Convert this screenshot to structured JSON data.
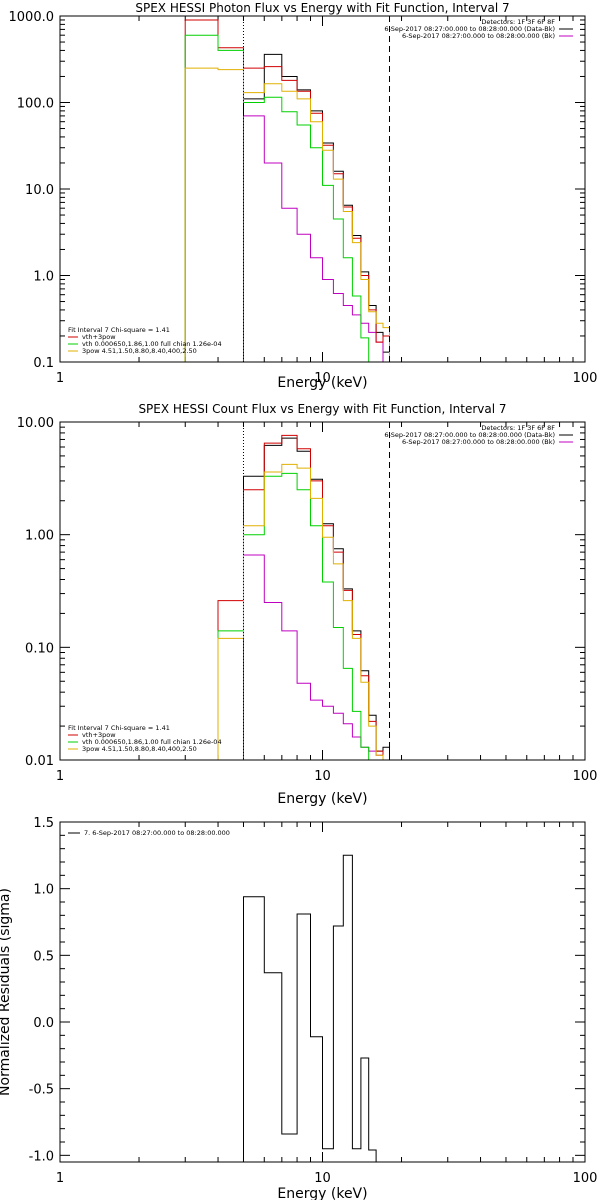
{
  "chart_data": [
    {
      "type": "line",
      "step": true,
      "scale": "log-log",
      "title": "SPEX HESSI Photon Flux vs Energy with Fit Function, Interval 7",
      "xlabel": "Energy (keV)",
      "ylabel": "",
      "xlim": [
        1,
        100
      ],
      "ylim": [
        0.1,
        1000
      ],
      "x_ticks": [
        "1",
        "10",
        "100"
      ],
      "y_ticks": [
        "0.1",
        "1.0",
        "10.0",
        "100.0",
        "1000.0"
      ],
      "vlines": [
        {
          "x": 5.0,
          "style": "dotted",
          "color": "#000000"
        },
        {
          "x": 18.0,
          "style": "dashed",
          "color": "#000000"
        }
      ],
      "info": [
        "Detectors: 1F 3F 6F 8F",
        "6-Sep-2017 08:27:00.000 to 08:28:00.000 (Data-Bk)",
        "6-Sep-2017 08:27:00.000 to 08:28:00.000 (Bk)"
      ],
      "info_colors": [
        "#000000",
        "#000000",
        "#c000c0"
      ],
      "fit_legend": [
        {
          "label": "Fit Interval 7   Chi-square = 1.41",
          "color": "#000000",
          "line": false
        },
        {
          "label": "vth+3pow",
          "color": "#d00000",
          "line": true
        },
        {
          "label": "vth 0.000650,1.86,1.00   full chian 1.26e-04",
          "color": "#00d000",
          "line": true
        },
        {
          "label": "3pow 4.51,1.50,8.80,8.40,400,2.50",
          "color": "#e0b000",
          "line": true
        }
      ],
      "energy_edges": [
        3,
        4,
        5,
        6,
        7,
        8,
        9,
        10,
        11,
        12,
        13,
        14,
        15,
        16,
        17,
        18,
        20
      ],
      "series": [
        {
          "name": "Data-Bk",
          "color": "#000000",
          "values": [
            null,
            null,
            110,
            360,
            200,
            140,
            80,
            34,
            16,
            6.5,
            2.9,
            1.1,
            0.45,
            0.22,
            0.13,
            null
          ]
        },
        {
          "name": "Bk",
          "color": "#c000c0",
          "values": [
            null,
            null,
            70,
            20,
            6.0,
            3.0,
            1.6,
            0.9,
            0.62,
            0.45,
            0.35,
            0.28,
            0.22,
            0.17,
            null,
            null
          ]
        },
        {
          "name": "vth+3pow",
          "color": "#d00000",
          "values": [
            900,
            430,
            250,
            260,
            180,
            135,
            75,
            32,
            15,
            6.2,
            2.7,
            1.0,
            0.4,
            0.17,
            0.2,
            null
          ]
        },
        {
          "name": "vth",
          "color": "#00d000",
          "values": [
            600,
            400,
            100,
            115,
            78,
            55,
            30,
            11,
            4.5,
            1.6,
            0.58,
            0.19,
            0.1,
            null,
            null,
            null
          ]
        },
        {
          "name": "3pow",
          "color": "#e0b000",
          "values": [
            250,
            240,
            130,
            165,
            135,
            110,
            60,
            28,
            13,
            5.5,
            2.4,
            0.9,
            0.38,
            0.28,
            0.25,
            null
          ]
        }
      ]
    },
    {
      "type": "line",
      "step": true,
      "scale": "log-log",
      "title": "SPEX HESSI Count Flux vs Energy with Fit Function, Interval 7",
      "xlabel": "Energy (keV)",
      "ylabel": "",
      "xlim": [
        1,
        100
      ],
      "ylim": [
        0.01,
        10
      ],
      "x_ticks": [
        "1",
        "10",
        "100"
      ],
      "y_ticks": [
        "0.01",
        "0.10",
        "1.00",
        "10.00"
      ],
      "vlines": [
        {
          "x": 5.0,
          "style": "dotted",
          "color": "#000000"
        },
        {
          "x": 18.0,
          "style": "dashed",
          "color": "#000000"
        }
      ],
      "info": [
        "Detectors: 1F 3F 6F 8F",
        "6-Sep-2017 08:27:00.000 to 08:28:00.000 (Data-Bk)",
        "6-Sep-2017 08:27:00.000 to 08:28:00.000 (Bk)"
      ],
      "info_colors": [
        "#000000",
        "#000000",
        "#c000c0"
      ],
      "fit_legend": [
        {
          "label": "Fit Interval 7   Chi-square = 1.41",
          "color": "#000000",
          "line": false
        },
        {
          "label": "vth+3pow",
          "color": "#d00000",
          "line": true
        },
        {
          "label": "vth 0.000650,1.86,1.00   full chian 1.26e-04",
          "color": "#00d000",
          "line": true
        },
        {
          "label": "3pow 4.51,1.50,8.80,8.40,400,2.50",
          "color": "#e0b000",
          "line": true
        }
      ],
      "energy_edges": [
        3,
        4,
        5,
        6,
        7,
        8,
        9,
        10,
        11,
        12,
        13,
        14,
        15,
        16,
        17,
        18,
        20
      ],
      "series": [
        {
          "name": "Data-Bk",
          "color": "#000000",
          "values": [
            null,
            null,
            3.3,
            6.2,
            7.2,
            5.5,
            3.1,
            1.25,
            0.75,
            0.33,
            0.14,
            0.062,
            0.025,
            0.012,
            0.013,
            null
          ]
        },
        {
          "name": "Bk",
          "color": "#c000c0",
          "values": [
            null,
            null,
            0.66,
            0.25,
            0.14,
            0.048,
            0.034,
            0.03,
            0.026,
            0.021,
            0.016,
            0.013,
            0.012,
            0.011,
            null,
            null
          ]
        },
        {
          "name": "vth+3pow",
          "color": "#d00000",
          "values": [
            null,
            0.26,
            2.5,
            6.5,
            7.6,
            5.8,
            3.0,
            1.2,
            0.7,
            0.32,
            0.13,
            0.056,
            0.022,
            0.012,
            0.01,
            0.01
          ]
        },
        {
          "name": "vth",
          "color": "#00d000",
          "values": [
            null,
            0.14,
            1.0,
            3.3,
            3.5,
            2.5,
            1.2,
            0.38,
            0.15,
            0.065,
            0.027,
            0.013,
            0.01,
            null,
            null,
            null
          ]
        },
        {
          "name": "3pow",
          "color": "#e0b000",
          "values": [
            null,
            0.12,
            1.2,
            3.6,
            4.2,
            3.9,
            2.1,
            0.95,
            0.55,
            0.26,
            0.12,
            0.049,
            0.02,
            0.011,
            0.01,
            null
          ]
        }
      ]
    },
    {
      "type": "line",
      "step": true,
      "scale": "log-linear",
      "title": "",
      "xlabel": "Energy (keV)",
      "ylabel": "Normalized Residuals (sigma)",
      "xlim": [
        1,
        100
      ],
      "ylim": [
        -1.05,
        1.5
      ],
      "x_ticks": [
        "1",
        "10",
        "100"
      ],
      "y_ticks": [
        "-1.0",
        "-0.5",
        "0.0",
        "0.5",
        "1.0",
        "1.5"
      ],
      "legend": [
        "7.  6-Sep-2017 08:27:00.000 to 08:28:00.000"
      ],
      "energy_edges": [
        5,
        6,
        7,
        8,
        9,
        10,
        11,
        12,
        13,
        14,
        15,
        16,
        17,
        18
      ],
      "series": [
        {
          "name": "",
          "color": "#000000",
          "values": [
            0.94,
            0.37,
            -0.84,
            0.81,
            -0.11,
            -0.95,
            0.72,
            1.25,
            -0.95,
            -0.27,
            -0.96,
            null,
            null
          ]
        }
      ]
    }
  ]
}
